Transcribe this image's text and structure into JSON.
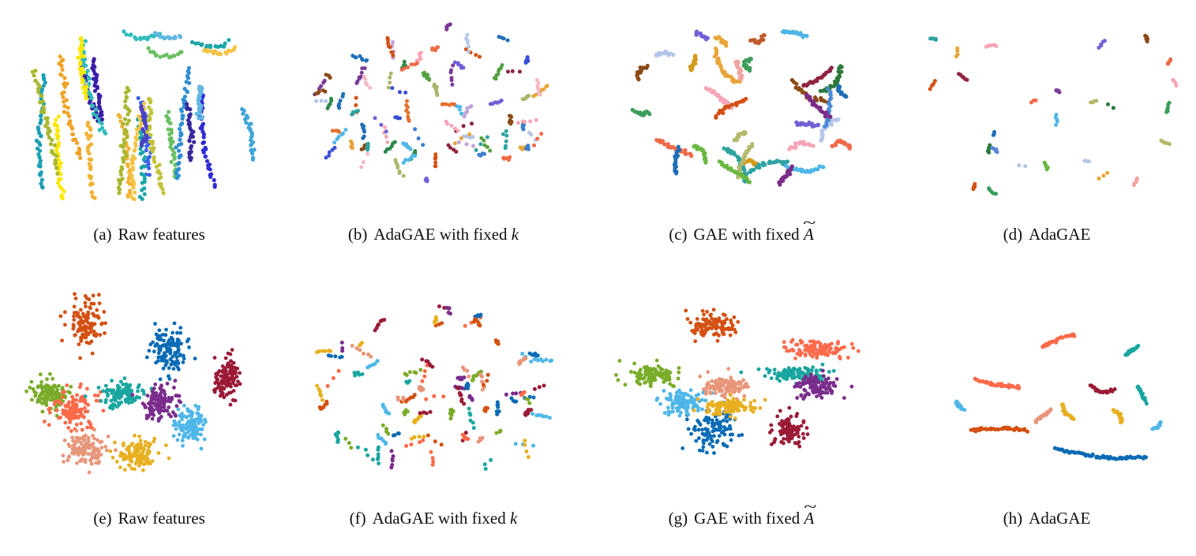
{
  "panels": [
    {
      "id": "a",
      "tag": "(a)",
      "caption": "Raw features",
      "var": "",
      "tilde_var": "",
      "chart_data": {
        "type": "scatter",
        "layout": "stripes",
        "seed": 11,
        "colors": [
          "#3b1fa8",
          "#f2b234",
          "#ffe800",
          "#a9b830",
          "#2e2bd6",
          "#3e61f0",
          "#1aa6a8",
          "#2fbcbb",
          "#62b8e0",
          "#6ac063",
          "#f5c446",
          "#2d8fd4",
          "#4c41c5",
          "#c2c23a",
          "#1b9fb4",
          "#f0a225",
          "#3fa6d9",
          "#362a9e"
        ]
      }
    },
    {
      "id": "b",
      "tag": "(b)",
      "caption": "AdaGAE with fixed ",
      "var": "k",
      "tilde_var": "",
      "chart_data": {
        "type": "scatter",
        "layout": "fragments",
        "seed": 23,
        "colors": [
          "#d45012",
          "#3c7fd0",
          "#8b4a17",
          "#f7a5b6",
          "#b5c6e8",
          "#7a3a9a",
          "#2ea3a0",
          "#e8a53a",
          "#2c8a4a",
          "#7060d8",
          "#4fb7e8",
          "#f06a48",
          "#a7b86a",
          "#1f6fb8",
          "#3a4fd6",
          "#c2a3d8",
          "#8f2440",
          "#f4b8c4",
          "#56a040",
          "#e4712d"
        ]
      }
    },
    {
      "id": "c",
      "tag": "(c)",
      "caption": "GAE with fixed ",
      "var": "",
      "tilde_var": "A",
      "chart_data": {
        "type": "scatter",
        "layout": "arcs",
        "seed": 37,
        "colors": [
          "#d49b1b",
          "#8b4a17",
          "#f7a5b6",
          "#3d9e5a",
          "#4fb7e8",
          "#7060d8",
          "#b5c6e8",
          "#1f6fb8",
          "#f06a48",
          "#b4b86a",
          "#6ab840",
          "#7a2c88",
          "#2ea3a0",
          "#e8a53a",
          "#d45012",
          "#2c7a3a",
          "#f0a4a0",
          "#8f2440",
          "#4a8bd8",
          "#c25a2a"
        ]
      }
    },
    {
      "id": "d",
      "tag": "(d)",
      "caption": "AdaGAE",
      "var": "",
      "tilde_var": "",
      "chart_data": {
        "type": "scatter",
        "layout": "tiny",
        "seed": 41,
        "colors": [
          "#3d9e5a",
          "#f06a48",
          "#b5c6e8",
          "#b4b86a",
          "#d45012",
          "#e8a53a",
          "#2c7a3a",
          "#f7a5b6",
          "#1f6fb8",
          "#4fb7e8",
          "#f0a4a0",
          "#7a3a9a",
          "#8f2440",
          "#6ab840",
          "#7060d8",
          "#8b4a17",
          "#5b86d8",
          "#2ea3a0"
        ]
      }
    },
    {
      "id": "e",
      "tag": "(e)",
      "caption": "Raw features",
      "var": "",
      "tilde_var": "",
      "chart_data": {
        "type": "scatter",
        "layout": "blobs",
        "seed": 53,
        "colors": [
          "#d45012",
          "#0a6bb5",
          "#9b1a36",
          "#7aac2a",
          "#fe6a4a",
          "#1aa6a0",
          "#7a2c8c",
          "#4fb7e8",
          "#e8967a",
          "#e8b020"
        ]
      }
    },
    {
      "id": "f",
      "tag": "(f)",
      "caption": "AdaGAE with fixed ",
      "var": "k",
      "tilde_var": "",
      "chart_data": {
        "type": "scatter",
        "layout": "fragments",
        "seed": 67,
        "colors": [
          "#d45012",
          "#0a6bb5",
          "#9b1a36",
          "#7aac2a",
          "#fe6a4a",
          "#1aa6a0",
          "#7a2c8c",
          "#4fb7e8",
          "#e8967a",
          "#e8b020"
        ]
      }
    },
    {
      "id": "g",
      "tag": "(g)",
      "caption": "GAE with fixed ",
      "var": "",
      "tilde_var": "A",
      "chart_data": {
        "type": "scatter",
        "layout": "blobs2",
        "seed": 71,
        "colors": [
          "#d45012",
          "#0a6bb5",
          "#9b1a36",
          "#7aac2a",
          "#fe6a4a",
          "#1aa6a0",
          "#7a2c8c",
          "#4fb7e8",
          "#e8967a",
          "#e8b020"
        ]
      }
    },
    {
      "id": "h",
      "tag": "(h)",
      "caption": "AdaGAE",
      "var": "",
      "tilde_var": "",
      "chart_data": {
        "type": "scatter",
        "layout": "curves",
        "seed": 83,
        "colors": [
          "#7aac2a",
          "#1aa6a0",
          "#fe6a4a",
          "#e8b020",
          "#9b1a36",
          "#7a2c8c",
          "#e8967a",
          "#4fb7e8",
          "#d45012",
          "#0a6bb5"
        ]
      }
    }
  ]
}
